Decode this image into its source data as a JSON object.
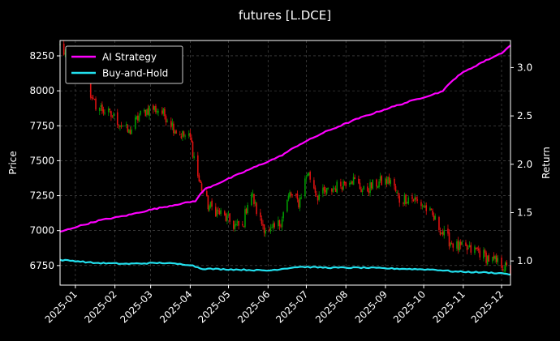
{
  "chart_data": {
    "type": "candlestick+line",
    "title": "futures [L.DCE]",
    "ylabel_left": "Price",
    "ylabel_right": "Return",
    "x_range": [
      "2024-12-20",
      "2025-12-08"
    ],
    "x_ticks": [
      "2025-01",
      "2025-02",
      "2025-03",
      "2025-04",
      "2025-05",
      "2025-06",
      "2025-07",
      "2025-08",
      "2025-09",
      "2025-10",
      "2025-11",
      "2025-12"
    ],
    "y_left_range": [
      6610,
      8360
    ],
    "y_left_ticks": [
      6750,
      7000,
      7250,
      7500,
      7750,
      8000,
      8250
    ],
    "y_right_range": [
      0.75,
      3.28
    ],
    "y_right_ticks": [
      "1.0",
      "1.5",
      "2.0",
      "2.5",
      "3.0"
    ],
    "grid": true,
    "legend_position": "top-left",
    "colors": {
      "up": "#009900",
      "down": "#dd1111",
      "ai_strategy": "#ff00ff",
      "buy_and_hold": "#22e0ee",
      "background": "#000000"
    },
    "price_path": [
      [
        "2024-12-20",
        8320
      ],
      [
        "2024-12-28",
        8200
      ],
      [
        "2025-01-05",
        8120
      ],
      [
        "2025-01-08",
        8260
      ],
      [
        "2025-01-14",
        7920
      ],
      [
        "2025-01-25",
        7850
      ],
      [
        "2025-02-04",
        7780
      ],
      [
        "2025-02-12",
        7700
      ],
      [
        "2025-02-20",
        7820
      ],
      [
        "2025-03-01",
        7880
      ],
      [
        "2025-03-08",
        7860
      ],
      [
        "2025-03-15",
        7800
      ],
      [
        "2025-03-22",
        7700
      ],
      [
        "2025-04-01",
        7660
      ],
      [
        "2025-04-08",
        7350
      ],
      [
        "2025-04-15",
        7180
      ],
      [
        "2025-04-25",
        7120
      ],
      [
        "2025-05-05",
        7040
      ],
      [
        "2025-05-12",
        7020
      ],
      [
        "2025-05-18",
        7300
      ],
      [
        "2025-05-25",
        7080
      ],
      [
        "2025-06-02",
        6980
      ],
      [
        "2025-06-10",
        7050
      ],
      [
        "2025-06-18",
        7260
      ],
      [
        "2025-06-25",
        7200
      ],
      [
        "2025-07-02",
        7420
      ],
      [
        "2025-07-10",
        7250
      ],
      [
        "2025-07-18",
        7280
      ],
      [
        "2025-07-28",
        7330
      ],
      [
        "2025-08-05",
        7380
      ],
      [
        "2025-08-15",
        7280
      ],
      [
        "2025-08-25",
        7340
      ],
      [
        "2025-09-05",
        7360
      ],
      [
        "2025-09-12",
        7220
      ],
      [
        "2025-09-20",
        7240
      ],
      [
        "2025-10-01",
        7180
      ],
      [
        "2025-10-08",
        7100
      ],
      [
        "2025-10-18",
        6950
      ],
      [
        "2025-10-28",
        6880
      ],
      [
        "2025-11-05",
        6860
      ],
      [
        "2025-11-12",
        6860
      ],
      [
        "2025-11-22",
        6790
      ],
      [
        "2025-12-01",
        6760
      ],
      [
        "2025-12-08",
        6700
      ]
    ],
    "series": [
      {
        "name": "AI Strategy",
        "axis": "right",
        "points": [
          [
            "2024-12-20",
            1.3
          ],
          [
            "2025-01-01",
            1.35
          ],
          [
            "2025-01-20",
            1.42
          ],
          [
            "2025-02-10",
            1.47
          ],
          [
            "2025-03-01",
            1.53
          ],
          [
            "2025-03-20",
            1.58
          ],
          [
            "2025-04-05",
            1.62
          ],
          [
            "2025-04-12",
            1.74
          ],
          [
            "2025-05-01",
            1.85
          ],
          [
            "2025-05-18",
            1.95
          ],
          [
            "2025-06-10",
            2.08
          ],
          [
            "2025-06-25",
            2.2
          ],
          [
            "2025-07-15",
            2.33
          ],
          [
            "2025-08-10",
            2.47
          ],
          [
            "2025-09-01",
            2.57
          ],
          [
            "2025-09-25",
            2.67
          ],
          [
            "2025-10-15",
            2.75
          ],
          [
            "2025-10-28",
            2.92
          ],
          [
            "2025-11-15",
            3.05
          ],
          [
            "2025-12-01",
            3.15
          ],
          [
            "2025-12-08",
            3.23
          ]
        ]
      },
      {
        "name": "Buy-and-Hold",
        "axis": "right",
        "points": [
          [
            "2024-12-20",
            1.01
          ],
          [
            "2025-01-01",
            1.0
          ],
          [
            "2025-01-15",
            0.98
          ],
          [
            "2025-02-10",
            0.97
          ],
          [
            "2025-03-10",
            0.98
          ],
          [
            "2025-04-01",
            0.96
          ],
          [
            "2025-04-10",
            0.92
          ],
          [
            "2025-05-10",
            0.91
          ],
          [
            "2025-06-01",
            0.9
          ],
          [
            "2025-06-25",
            0.94
          ],
          [
            "2025-07-20",
            0.93
          ],
          [
            "2025-08-15",
            0.93
          ],
          [
            "2025-09-10",
            0.92
          ],
          [
            "2025-10-10",
            0.91
          ],
          [
            "2025-10-25",
            0.89
          ],
          [
            "2025-11-20",
            0.88
          ],
          [
            "2025-12-04",
            0.87
          ],
          [
            "2025-12-08",
            0.86
          ]
        ]
      }
    ]
  }
}
